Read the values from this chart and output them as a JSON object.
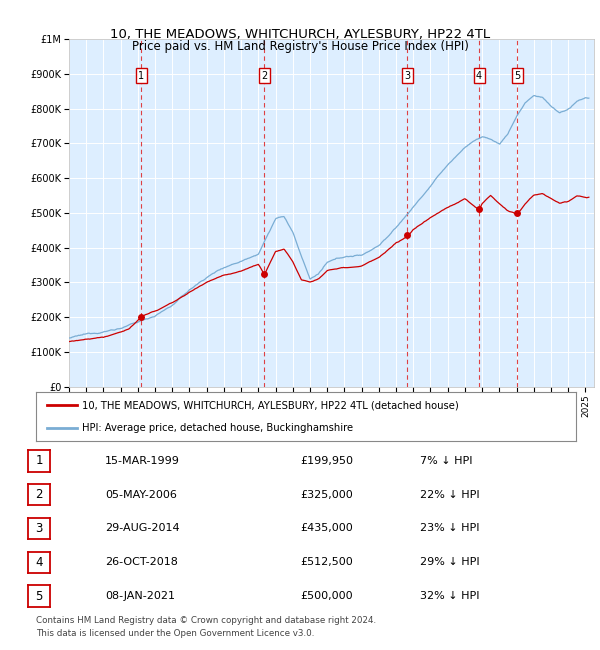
{
  "title": "10, THE MEADOWS, WHITCHURCH, AYLESBURY, HP22 4TL",
  "subtitle": "Price paid vs. HM Land Registry's House Price Index (HPI)",
  "yticks": [
    0,
    100000,
    200000,
    300000,
    400000,
    500000,
    600000,
    700000,
    800000,
    900000,
    1000000
  ],
  "ytick_labels": [
    "£0",
    "£100K",
    "£200K",
    "£300K",
    "£400K",
    "£500K",
    "£600K",
    "£700K",
    "£800K",
    "£900K",
    "£1M"
  ],
  "xmin": 1995.0,
  "xmax": 2025.5,
  "hpi_color": "#7aadd4",
  "price_color": "#cc0000",
  "plot_bg_color": "#ddeeff",
  "transactions": [
    {
      "num": 1,
      "date": "15-MAR-1999",
      "year": 1999.2,
      "price": 199950,
      "pct": "7% ↓ HPI"
    },
    {
      "num": 2,
      "date": "05-MAY-2006",
      "year": 2006.35,
      "price": 325000,
      "pct": "22% ↓ HPI"
    },
    {
      "num": 3,
      "date": "29-AUG-2014",
      "year": 2014.66,
      "price": 435000,
      "pct": "23% ↓ HPI"
    },
    {
      "num": 4,
      "date": "26-OCT-2018",
      "year": 2018.82,
      "price": 512500,
      "pct": "29% ↓ HPI"
    },
    {
      "num": 5,
      "date": "08-JAN-2021",
      "year": 2021.03,
      "price": 500000,
      "pct": "32% ↓ HPI"
    }
  ],
  "legend_label_price": "10, THE MEADOWS, WHITCHURCH, AYLESBURY, HP22 4TL (detached house)",
  "legend_label_hpi": "HPI: Average price, detached house, Buckinghamshire",
  "footer": "Contains HM Land Registry data © Crown copyright and database right 2024.\nThis data is licensed under the Open Government Licence v3.0.",
  "xticks": [
    1995,
    1996,
    1997,
    1998,
    1999,
    2000,
    2001,
    2002,
    2003,
    2004,
    2005,
    2006,
    2007,
    2008,
    2009,
    2010,
    2011,
    2012,
    2013,
    2014,
    2015,
    2016,
    2017,
    2018,
    2019,
    2020,
    2021,
    2022,
    2023,
    2024,
    2025
  ],
  "table_rows": [
    {
      "num": "1",
      "date": "15-MAR-1999",
      "price": "£199,950",
      "pct": "7% ↓ HPI"
    },
    {
      "num": "2",
      "date": "05-MAY-2006",
      "price": "£325,000",
      "pct": "22% ↓ HPI"
    },
    {
      "num": "3",
      "date": "29-AUG-2014",
      "price": "£435,000",
      "pct": "23% ↓ HPI"
    },
    {
      "num": "4",
      "date": "26-OCT-2018",
      "price": "£512,500",
      "pct": "29% ↓ HPI"
    },
    {
      "num": "5",
      "date": "08-JAN-2021",
      "price": "£500,000",
      "pct": "32% ↓ HPI"
    }
  ],
  "footer_text": "Contains HM Land Registry data © Crown copyright and database right 2024.\nThis data is licensed under the Open Government Licence v3.0."
}
